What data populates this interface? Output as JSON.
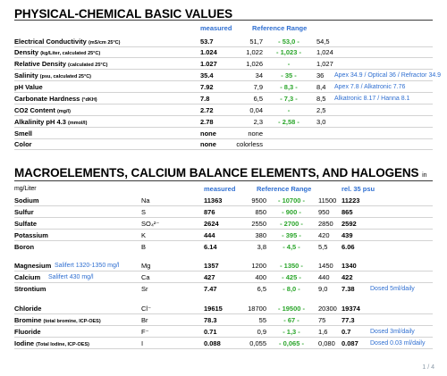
{
  "sec1": {
    "title": "PHYSICAL-CHEMICAL BASIC VALUES",
    "col_measured": "measured",
    "col_ref": "Reference Range",
    "rows": [
      {
        "label": "Electrical Conductivity",
        "unit": "(mS/cm 25°C)",
        "measured": "53.7",
        "rmin": "51,7",
        "ropt": "- 53,0 -",
        "rmax": "54,5",
        "note": ""
      },
      {
        "label": "Density",
        "unit": "(kg/Liter, calculated 25°C)",
        "measured": "1.024",
        "rmin": "1,022",
        "ropt": "- 1,023 -",
        "rmax": "1,024",
        "note": ""
      },
      {
        "label": "Relative Density",
        "unit": "(calculated 25°C)",
        "measured": "1.027",
        "rmin": "1,026",
        "ropt": "-",
        "rmax": "1,027",
        "note": ""
      },
      {
        "label": "Salinity",
        "unit": "(psu, calculated 25°C)",
        "measured": "35.4",
        "rmin": "34",
        "ropt": "- 35 -",
        "rmax": "36",
        "note": "Apex 34.9 / Optical 36 / Refractor 34.9"
      },
      {
        "label": "pH Value",
        "unit": "",
        "measured": "7.92",
        "rmin": "7,9",
        "ropt": "- 8,3 -",
        "rmax": "8,4",
        "note": "Apex 7.8 / Alkatronic 7.76"
      },
      {
        "label": "Carbonate Hardness",
        "unit": "(°dKH)",
        "measured": "7.8",
        "rmin": "6,5",
        "ropt": "- 7,3 -",
        "rmax": "8,5",
        "note": "Alkatronic 8.17 / Hanna 8.1"
      },
      {
        "label": "CO2 Content",
        "unit": "(mg/l)",
        "measured": "2.72",
        "rmin": "0,04",
        "ropt": "-",
        "rmax": "2,5",
        "note": ""
      },
      {
        "label": "Alkalinity pH 4.3",
        "unit": "(mmol/l)",
        "measured": "2.78",
        "rmin": "2,3",
        "ropt": "- 2,58 -",
        "rmax": "3,0",
        "note": ""
      },
      {
        "label": "Smell",
        "unit": "",
        "measured": "none",
        "rmin": "none",
        "ropt": "",
        "rmax": "",
        "note": ""
      },
      {
        "label": "Color",
        "unit": "",
        "measured": "none",
        "rmin": "colorless",
        "ropt": "",
        "rmax": "",
        "note": ""
      }
    ]
  },
  "sec2": {
    "title": "MACROELEMENTS, CALCIUM BALANCE ELEMENTS, AND HALOGENS",
    "subtitle": "in mg/Liter",
    "col_measured": "measured",
    "col_ref": "Reference Range",
    "col_rel": "rel. 35 psu",
    "groups": [
      [
        {
          "label": "Sodium",
          "unit": "",
          "inline": "",
          "sym": "Na",
          "measured": "11363",
          "rmin": "9500",
          "ropt": "- 10700 -",
          "rmax": "11500",
          "rel": "11223",
          "note": ""
        },
        {
          "label": "Sulfur",
          "unit": "",
          "inline": "",
          "sym": "S",
          "measured": "876",
          "rmin": "850",
          "ropt": "- 900 -",
          "rmax": "950",
          "rel": "865",
          "note": ""
        },
        {
          "label": "Sulfate",
          "unit": "",
          "inline": "",
          "sym": "SO₄²⁻",
          "measured": "2624",
          "rmin": "2550",
          "ropt": "- 2700 -",
          "rmax": "2850",
          "rel": "2592",
          "note": ""
        },
        {
          "label": "Potassium",
          "unit": "",
          "inline": "",
          "sym": "K",
          "measured": "444",
          "rmin": "380",
          "ropt": "- 395 -",
          "rmax": "420",
          "rel": "439",
          "note": ""
        },
        {
          "label": "Boron",
          "unit": "",
          "inline": "",
          "sym": "B",
          "measured": "6.14",
          "rmin": "3,8",
          "ropt": "- 4,5 -",
          "rmax": "5,5",
          "rel": "6.06",
          "note": ""
        }
      ],
      [
        {
          "label": "Magnesium",
          "unit": "",
          "inline": "Salifert 1320-1350 mg/l",
          "sym": "Mg",
          "measured": "1357",
          "rmin": "1200",
          "ropt": "- 1350 -",
          "rmax": "1450",
          "rel": "1340",
          "note": ""
        },
        {
          "label": "Calcium",
          "unit": "",
          "inline": "Salifert 430 mg/l",
          "sym": "Ca",
          "measured": "427",
          "rmin": "400",
          "ropt": "- 425 -",
          "rmax": "440",
          "rel": "422",
          "note": ""
        },
        {
          "label": "Strontium",
          "unit": "",
          "inline": "",
          "sym": "Sr",
          "measured": "7.47",
          "rmin": "6,5",
          "ropt": "- 8,0 -",
          "rmax": "9,0",
          "rel": "7.38",
          "note": "Dosed 5ml/daily"
        }
      ],
      [
        {
          "label": "Chloride",
          "unit": "",
          "inline": "",
          "sym": "Cl⁻",
          "measured": "19615",
          "rmin": "18700",
          "ropt": "- 19500 -",
          "rmax": "20300",
          "rel": "19374",
          "note": ""
        },
        {
          "label": "Bromine",
          "unit": "(total bromine, ICP-OES)",
          "inline": "",
          "sym": "Br",
          "measured": "78.3",
          "rmin": "55",
          "ropt": "- 67 -",
          "rmax": "75",
          "rel": "77.3",
          "note": ""
        },
        {
          "label": "Fluoride",
          "unit": "",
          "inline": "",
          "sym": "F⁻",
          "measured": "0.71",
          "rmin": "0,9",
          "ropt": "- 1,3 -",
          "rmax": "1,6",
          "rel": "0.7",
          "note": "Dosed 3ml/daily"
        },
        {
          "label": "Iodine",
          "unit": "(Total Iodine, ICP-OES)",
          "inline": "",
          "sym": "I",
          "measured": "0.088",
          "rmin": "0,055",
          "ropt": "- 0,065 -",
          "rmax": "0,080",
          "rel": "0.087",
          "note": "Dosed 0.03 ml/daily"
        }
      ]
    ]
  },
  "footer": {
    "page": "1 / 4"
  }
}
